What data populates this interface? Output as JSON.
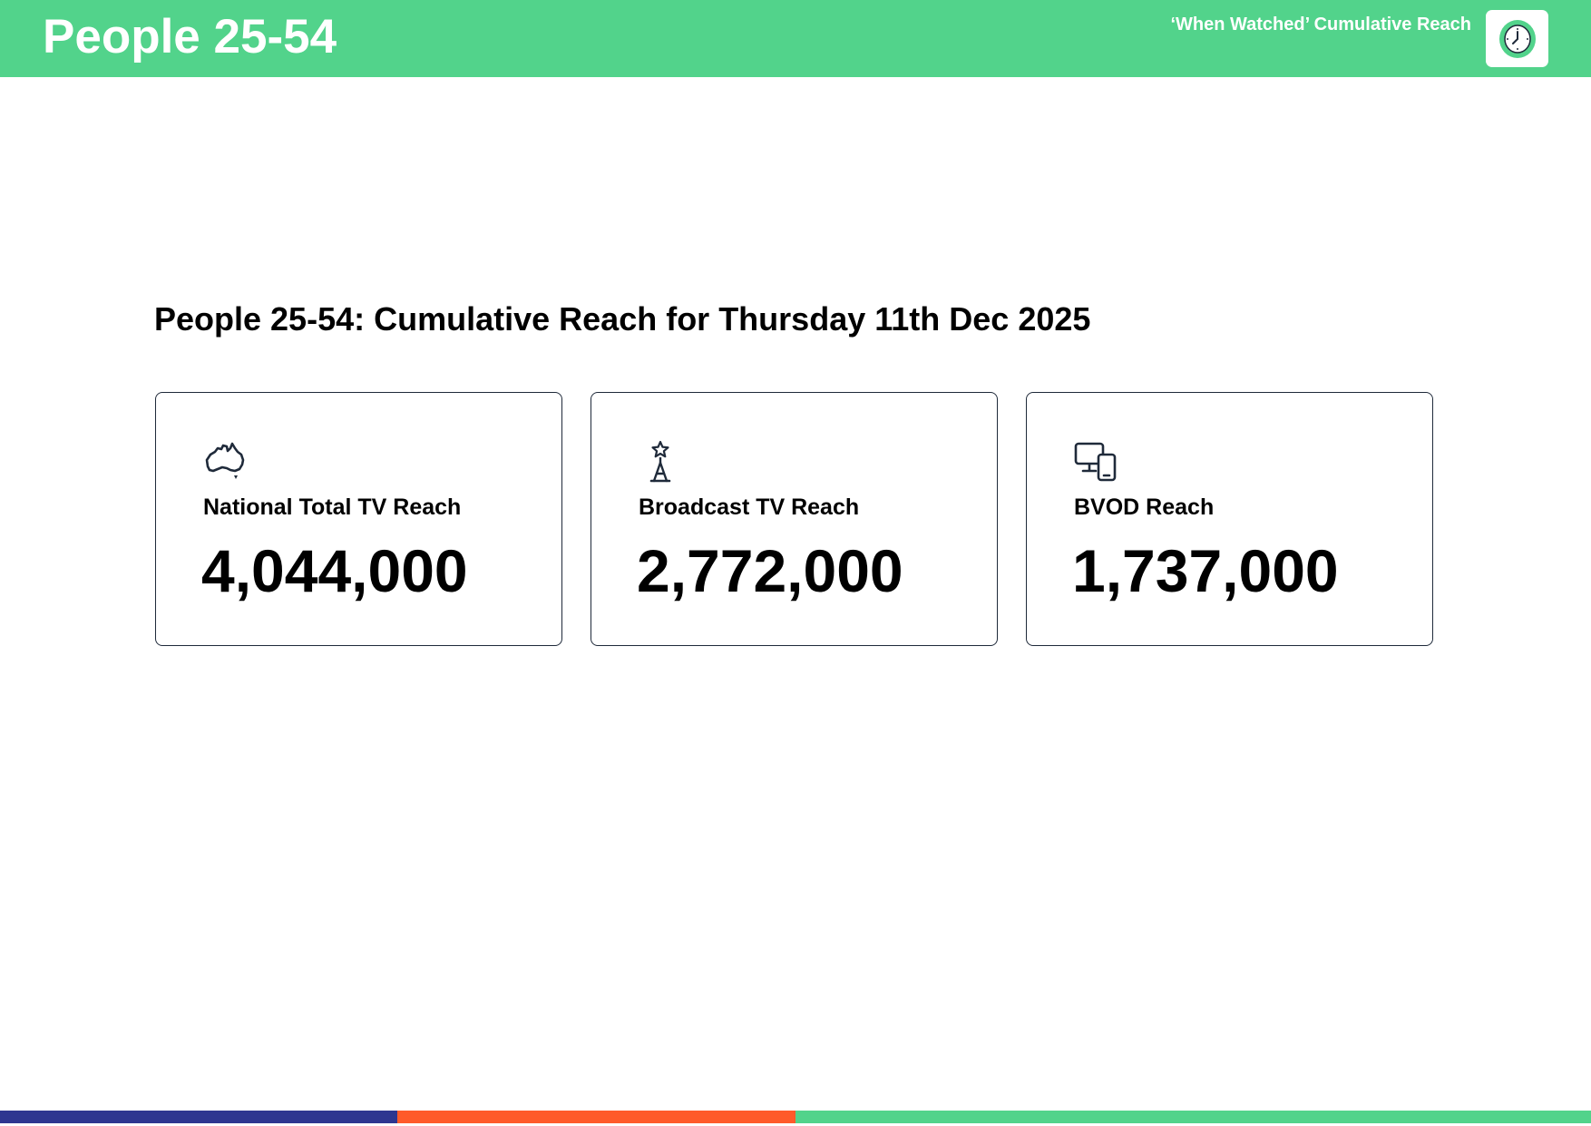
{
  "header": {
    "title": "People 25-54",
    "subtitle": "‘When Watched’ Cumulative Reach",
    "icon": "clock-icon"
  },
  "main": {
    "title": "People 25-54: Cumulative Reach for Thursday 11th Dec 2025"
  },
  "cards": [
    {
      "icon": "australia-map-icon",
      "label": "National Total TV Reach",
      "value": "4,044,000"
    },
    {
      "icon": "broadcast-tower-icon",
      "label": "Broadcast TV Reach",
      "value": "2,772,000"
    },
    {
      "icon": "devices-icon",
      "label": "BVOD Reach",
      "value": "1,737,000"
    }
  ],
  "colors": {
    "brand_green": "#52d38b",
    "navy": "#2e3690",
    "orange": "#ff5a2a",
    "card_border": "#1f2a3a"
  }
}
